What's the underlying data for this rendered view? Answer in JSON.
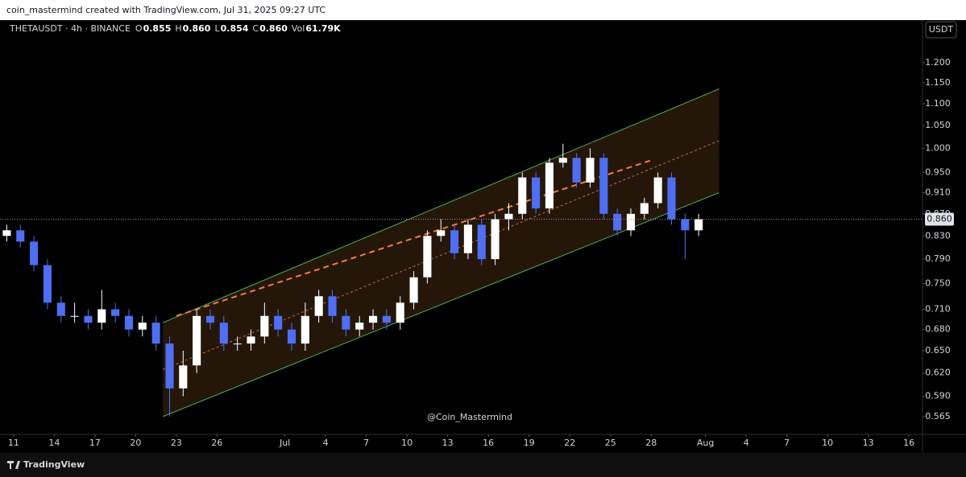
{
  "header": {
    "credit": "coin_mastermind created with TradingView.com, Jul 31, 2025 09:27 UTC"
  },
  "brand": "TradingView",
  "chart_data": {
    "type": "candlestick",
    "symbol": "THETAUSDT · 4h · BINANCE",
    "quote": [
      {
        "key": "O",
        "value": "0.855"
      },
      {
        "key": "H",
        "value": "0.860"
      },
      {
        "key": "L",
        "value": "0.854"
      },
      {
        "key": "C",
        "value": "0.860"
      },
      {
        "key": "Vol",
        "value": "61.79K"
      }
    ],
    "currency": "USDT",
    "watermark": "@Coin_Mastermind",
    "log_scale": true,
    "up_color": "#ffffff",
    "down_color": "#4f6ef2",
    "x": [
      "2025-06-10",
      "2025-06-11",
      "2025-06-12",
      "2025-06-13",
      "2025-06-14",
      "2025-06-15",
      "2025-06-16",
      "2025-06-17",
      "2025-06-18",
      "2025-06-19",
      "2025-06-20",
      "2025-06-21",
      "2025-06-22",
      "2025-06-23",
      "2025-06-24",
      "2025-06-25",
      "2025-06-26",
      "2025-06-27",
      "2025-06-28",
      "2025-06-29",
      "2025-06-30",
      "2025-07-01",
      "2025-07-02",
      "2025-07-03",
      "2025-07-04",
      "2025-07-05",
      "2025-07-06",
      "2025-07-07",
      "2025-07-08",
      "2025-07-09",
      "2025-07-10",
      "2025-07-11",
      "2025-07-12",
      "2025-07-13",
      "2025-07-14",
      "2025-07-15",
      "2025-07-16",
      "2025-07-17",
      "2025-07-18",
      "2025-07-19",
      "2025-07-20",
      "2025-07-21",
      "2025-07-22",
      "2025-07-23",
      "2025-07-24",
      "2025-07-25",
      "2025-07-26",
      "2025-07-27",
      "2025-07-28",
      "2025-07-29",
      "2025-07-30",
      "2025-07-31"
    ],
    "open": [
      0.83,
      0.84,
      0.82,
      0.78,
      0.72,
      0.7,
      0.7,
      0.69,
      0.71,
      0.7,
      0.68,
      0.69,
      0.66,
      0.6,
      0.63,
      0.7,
      0.69,
      0.66,
      0.66,
      0.67,
      0.7,
      0.68,
      0.66,
      0.7,
      0.73,
      0.7,
      0.68,
      0.69,
      0.7,
      0.69,
      0.72,
      0.76,
      0.83,
      0.84,
      0.8,
      0.85,
      0.79,
      0.86,
      0.87,
      0.94,
      0.88,
      0.97,
      0.98,
      0.93,
      0.98,
      0.87,
      0.84,
      0.87,
      0.89,
      0.94,
      0.86,
      0.84
    ],
    "high": [
      0.85,
      0.85,
      0.83,
      0.79,
      0.73,
      0.72,
      0.71,
      0.74,
      0.72,
      0.71,
      0.7,
      0.7,
      0.67,
      0.65,
      0.71,
      0.71,
      0.7,
      0.67,
      0.68,
      0.72,
      0.71,
      0.69,
      0.72,
      0.74,
      0.74,
      0.71,
      0.7,
      0.71,
      0.71,
      0.73,
      0.77,
      0.84,
      0.86,
      0.85,
      0.86,
      0.86,
      0.87,
      0.89,
      0.95,
      0.95,
      0.98,
      1.01,
      0.99,
      1.0,
      0.99,
      0.88,
      0.88,
      0.9,
      0.95,
      0.95,
      0.87,
      0.87
    ],
    "low": [
      0.82,
      0.81,
      0.77,
      0.71,
      0.69,
      0.69,
      0.68,
      0.68,
      0.69,
      0.67,
      0.67,
      0.65,
      0.565,
      0.59,
      0.62,
      0.68,
      0.65,
      0.65,
      0.65,
      0.66,
      0.67,
      0.65,
      0.65,
      0.69,
      0.69,
      0.67,
      0.67,
      0.68,
      0.68,
      0.68,
      0.71,
      0.75,
      0.82,
      0.79,
      0.79,
      0.78,
      0.78,
      0.84,
      0.86,
      0.87,
      0.87,
      0.96,
      0.92,
      0.92,
      0.86,
      0.83,
      0.83,
      0.86,
      0.88,
      0.85,
      0.79,
      0.83
    ],
    "close": [
      0.84,
      0.82,
      0.78,
      0.72,
      0.7,
      0.7,
      0.69,
      0.71,
      0.7,
      0.68,
      0.69,
      0.66,
      0.6,
      0.63,
      0.7,
      0.69,
      0.66,
      0.66,
      0.67,
      0.7,
      0.68,
      0.66,
      0.7,
      0.73,
      0.7,
      0.68,
      0.69,
      0.7,
      0.69,
      0.72,
      0.76,
      0.83,
      0.84,
      0.8,
      0.85,
      0.79,
      0.86,
      0.87,
      0.94,
      0.88,
      0.97,
      0.98,
      0.93,
      0.98,
      0.87,
      0.84,
      0.87,
      0.89,
      0.94,
      0.86,
      0.84,
      0.86
    ],
    "last_price": {
      "value": 0.86,
      "label": "0.860"
    },
    "channel": {
      "start": "2025-06-22",
      "end": "2025-08-02",
      "upper": [
        0.69,
        1.135
      ],
      "lower": [
        0.565,
        0.91
      ],
      "color": "#4caf50"
    },
    "trendline": {
      "start": "2025-06-23",
      "end": "2025-07-28",
      "values": [
        0.7,
        0.975
      ],
      "color": "#f57c3a"
    },
    "xlim": [
      "2025-06-10",
      "2025-08-17"
    ],
    "ylim": [
      0.544,
      1.314
    ],
    "xticks": [
      {
        "value": "2025-06-11",
        "label": "11"
      },
      {
        "value": "2025-06-14",
        "label": "14"
      },
      {
        "value": "2025-06-17",
        "label": "17"
      },
      {
        "value": "2025-06-20",
        "label": "20"
      },
      {
        "value": "2025-06-23",
        "label": "23"
      },
      {
        "value": "2025-06-26",
        "label": "26"
      },
      {
        "value": "2025-07-01",
        "label": "Jul"
      },
      {
        "value": "2025-07-04",
        "label": "4"
      },
      {
        "value": "2025-07-07",
        "label": "7"
      },
      {
        "value": "2025-07-10",
        "label": "10"
      },
      {
        "value": "2025-07-13",
        "label": "13"
      },
      {
        "value": "2025-07-16",
        "label": "16"
      },
      {
        "value": "2025-07-19",
        "label": "19"
      },
      {
        "value": "2025-07-22",
        "label": "22"
      },
      {
        "value": "2025-07-25",
        "label": "25"
      },
      {
        "value": "2025-07-28",
        "label": "28"
      },
      {
        "value": "2025-08-01",
        "label": "Aug"
      },
      {
        "value": "2025-08-04",
        "label": "4"
      },
      {
        "value": "2025-08-07",
        "label": "7"
      },
      {
        "value": "2025-08-10",
        "label": "10"
      },
      {
        "value": "2025-08-13",
        "label": "13"
      },
      {
        "value": "2025-08-16",
        "label": "16"
      }
    ],
    "yticks": [
      0.565,
      {
        "value": 0.59,
        "label": "0.590"
      },
      {
        "value": 0.62,
        "label": "0.620"
      },
      {
        "value": 0.65,
        "label": "0.650"
      },
      {
        "value": 0.68,
        "label": "0.680"
      },
      {
        "value": 0.71,
        "label": "0.710"
      },
      {
        "value": 0.75,
        "label": "0.750"
      },
      {
        "value": 0.79,
        "label": "0.790"
      },
      {
        "value": 0.83,
        "label": "0.830"
      },
      {
        "value": 0.87,
        "label": "0.870"
      },
      {
        "value": 0.91,
        "label": "0.910"
      },
      {
        "value": 0.95,
        "label": "0.950"
      },
      {
        "value": 1,
        "label": "1.000"
      },
      {
        "value": 1.05,
        "label": "1.050"
      },
      {
        "value": 1.1,
        "label": "1.100"
      },
      {
        "value": 1.15,
        "label": "1.150"
      },
      {
        "value": 1.2,
        "label": "1.200"
      }
    ]
  }
}
